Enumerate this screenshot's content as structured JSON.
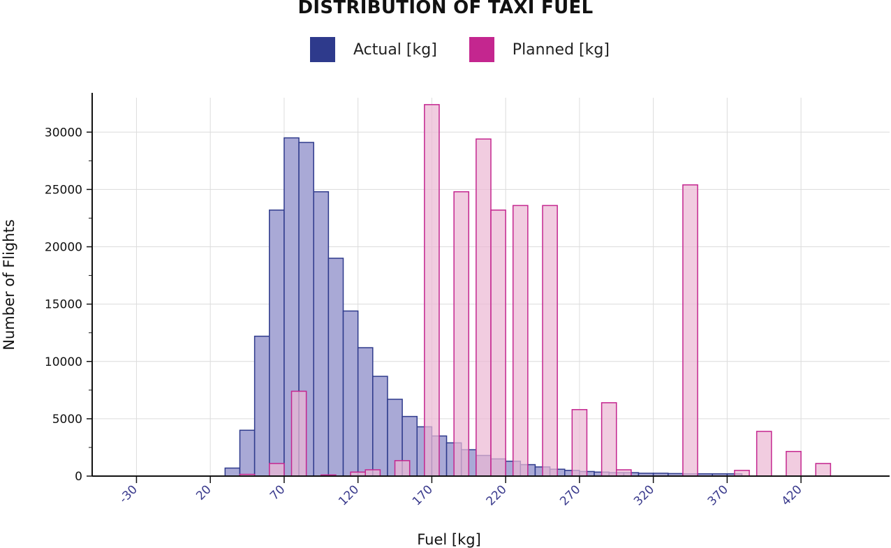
{
  "chart_data": {
    "type": "bar",
    "title": "DISTRIBUTION OF TAXI FUEL",
    "xlabel": "Fuel [kg]",
    "ylabel": "Number of Flights",
    "xlim": [
      -60,
      480
    ],
    "ylim": [
      0,
      33000
    ],
    "bin_width": 10,
    "x_ticks": [
      -30,
      20,
      70,
      120,
      170,
      220,
      270,
      320,
      370,
      420
    ],
    "y_ticks": [
      0,
      5000,
      10000,
      15000,
      20000,
      25000,
      30000
    ],
    "grid": true,
    "legend_position": "top-center",
    "series": [
      {
        "name": "Actual [kg]",
        "color": "#2e3a8c",
        "fill": "#a9a9d6",
        "bins": [
          [
            30,
            40,
            700
          ],
          [
            40,
            50,
            4000
          ],
          [
            50,
            60,
            12200
          ],
          [
            60,
            70,
            23200
          ],
          [
            70,
            80,
            29500
          ],
          [
            80,
            90,
            29100
          ],
          [
            90,
            100,
            24800
          ],
          [
            100,
            110,
            19000
          ],
          [
            110,
            120,
            14400
          ],
          [
            120,
            130,
            11200
          ],
          [
            130,
            140,
            8700
          ],
          [
            140,
            150,
            6700
          ],
          [
            150,
            160,
            5200
          ],
          [
            160,
            170,
            4300
          ],
          [
            170,
            180,
            3500
          ],
          [
            180,
            190,
            2900
          ],
          [
            190,
            200,
            2300
          ],
          [
            200,
            210,
            1800
          ],
          [
            210,
            220,
            1500
          ],
          [
            220,
            230,
            1300
          ],
          [
            230,
            240,
            1000
          ],
          [
            240,
            250,
            800
          ],
          [
            250,
            260,
            600
          ],
          [
            260,
            270,
            500
          ],
          [
            270,
            280,
            400
          ],
          [
            280,
            290,
            350
          ],
          [
            290,
            300,
            300
          ],
          [
            300,
            310,
            300
          ],
          [
            310,
            320,
            250
          ],
          [
            320,
            330,
            250
          ],
          [
            330,
            340,
            220
          ],
          [
            340,
            350,
            200
          ],
          [
            350,
            360,
            200
          ],
          [
            360,
            370,
            200
          ],
          [
            370,
            380,
            200
          ]
        ]
      },
      {
        "name": "Planned [kg]",
        "color": "#c4268f",
        "fill": "#ecb8d4",
        "bins": [
          [
            40,
            50,
            150
          ],
          [
            60,
            70,
            1100
          ],
          [
            75,
            85,
            7400
          ],
          [
            95,
            105,
            100
          ],
          [
            115,
            125,
            350
          ],
          [
            125,
            135,
            550
          ],
          [
            145,
            155,
            1350
          ],
          [
            165,
            175,
            32400
          ],
          [
            185,
            195,
            24800
          ],
          [
            200,
            210,
            29400
          ],
          [
            210,
            220,
            23200
          ],
          [
            225,
            235,
            23600
          ],
          [
            245,
            255,
            23600
          ],
          [
            265,
            275,
            5800
          ],
          [
            285,
            295,
            6400
          ],
          [
            295,
            305,
            550
          ],
          [
            340,
            350,
            25400
          ],
          [
            375,
            385,
            500
          ],
          [
            390,
            400,
            3900
          ],
          [
            410,
            420,
            2150
          ],
          [
            430,
            440,
            1100
          ]
        ]
      }
    ]
  }
}
